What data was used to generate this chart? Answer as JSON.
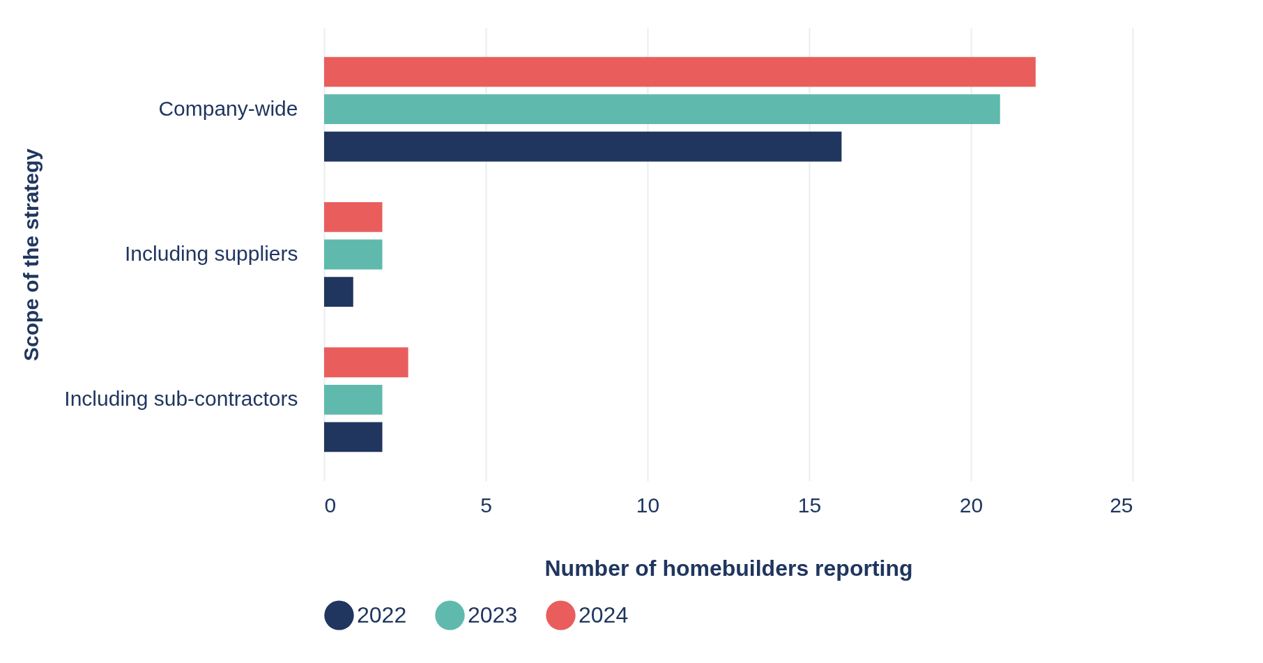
{
  "chart_data": {
    "type": "bar",
    "orientation": "horizontal",
    "xlabel": "Number of homebuilders reporting",
    "ylabel": "Scope of the strategy",
    "categories": [
      "Company-wide",
      "Including suppliers",
      "Including sub-contractors"
    ],
    "series": [
      {
        "name": "2022",
        "color": "#20365f",
        "values": [
          16,
          0.9,
          1.8
        ]
      },
      {
        "name": "2023",
        "color": "#5fbaad",
        "values": [
          20.9,
          1.8,
          1.8
        ]
      },
      {
        "name": "2024",
        "color": "#e95e5c",
        "values": [
          22,
          1.8,
          2.6
        ]
      }
    ],
    "xlim": [
      0,
      25
    ],
    "xticks": [
      0,
      5,
      10,
      15,
      20,
      25
    ],
    "grid": "x",
    "legend": "bottom"
  }
}
